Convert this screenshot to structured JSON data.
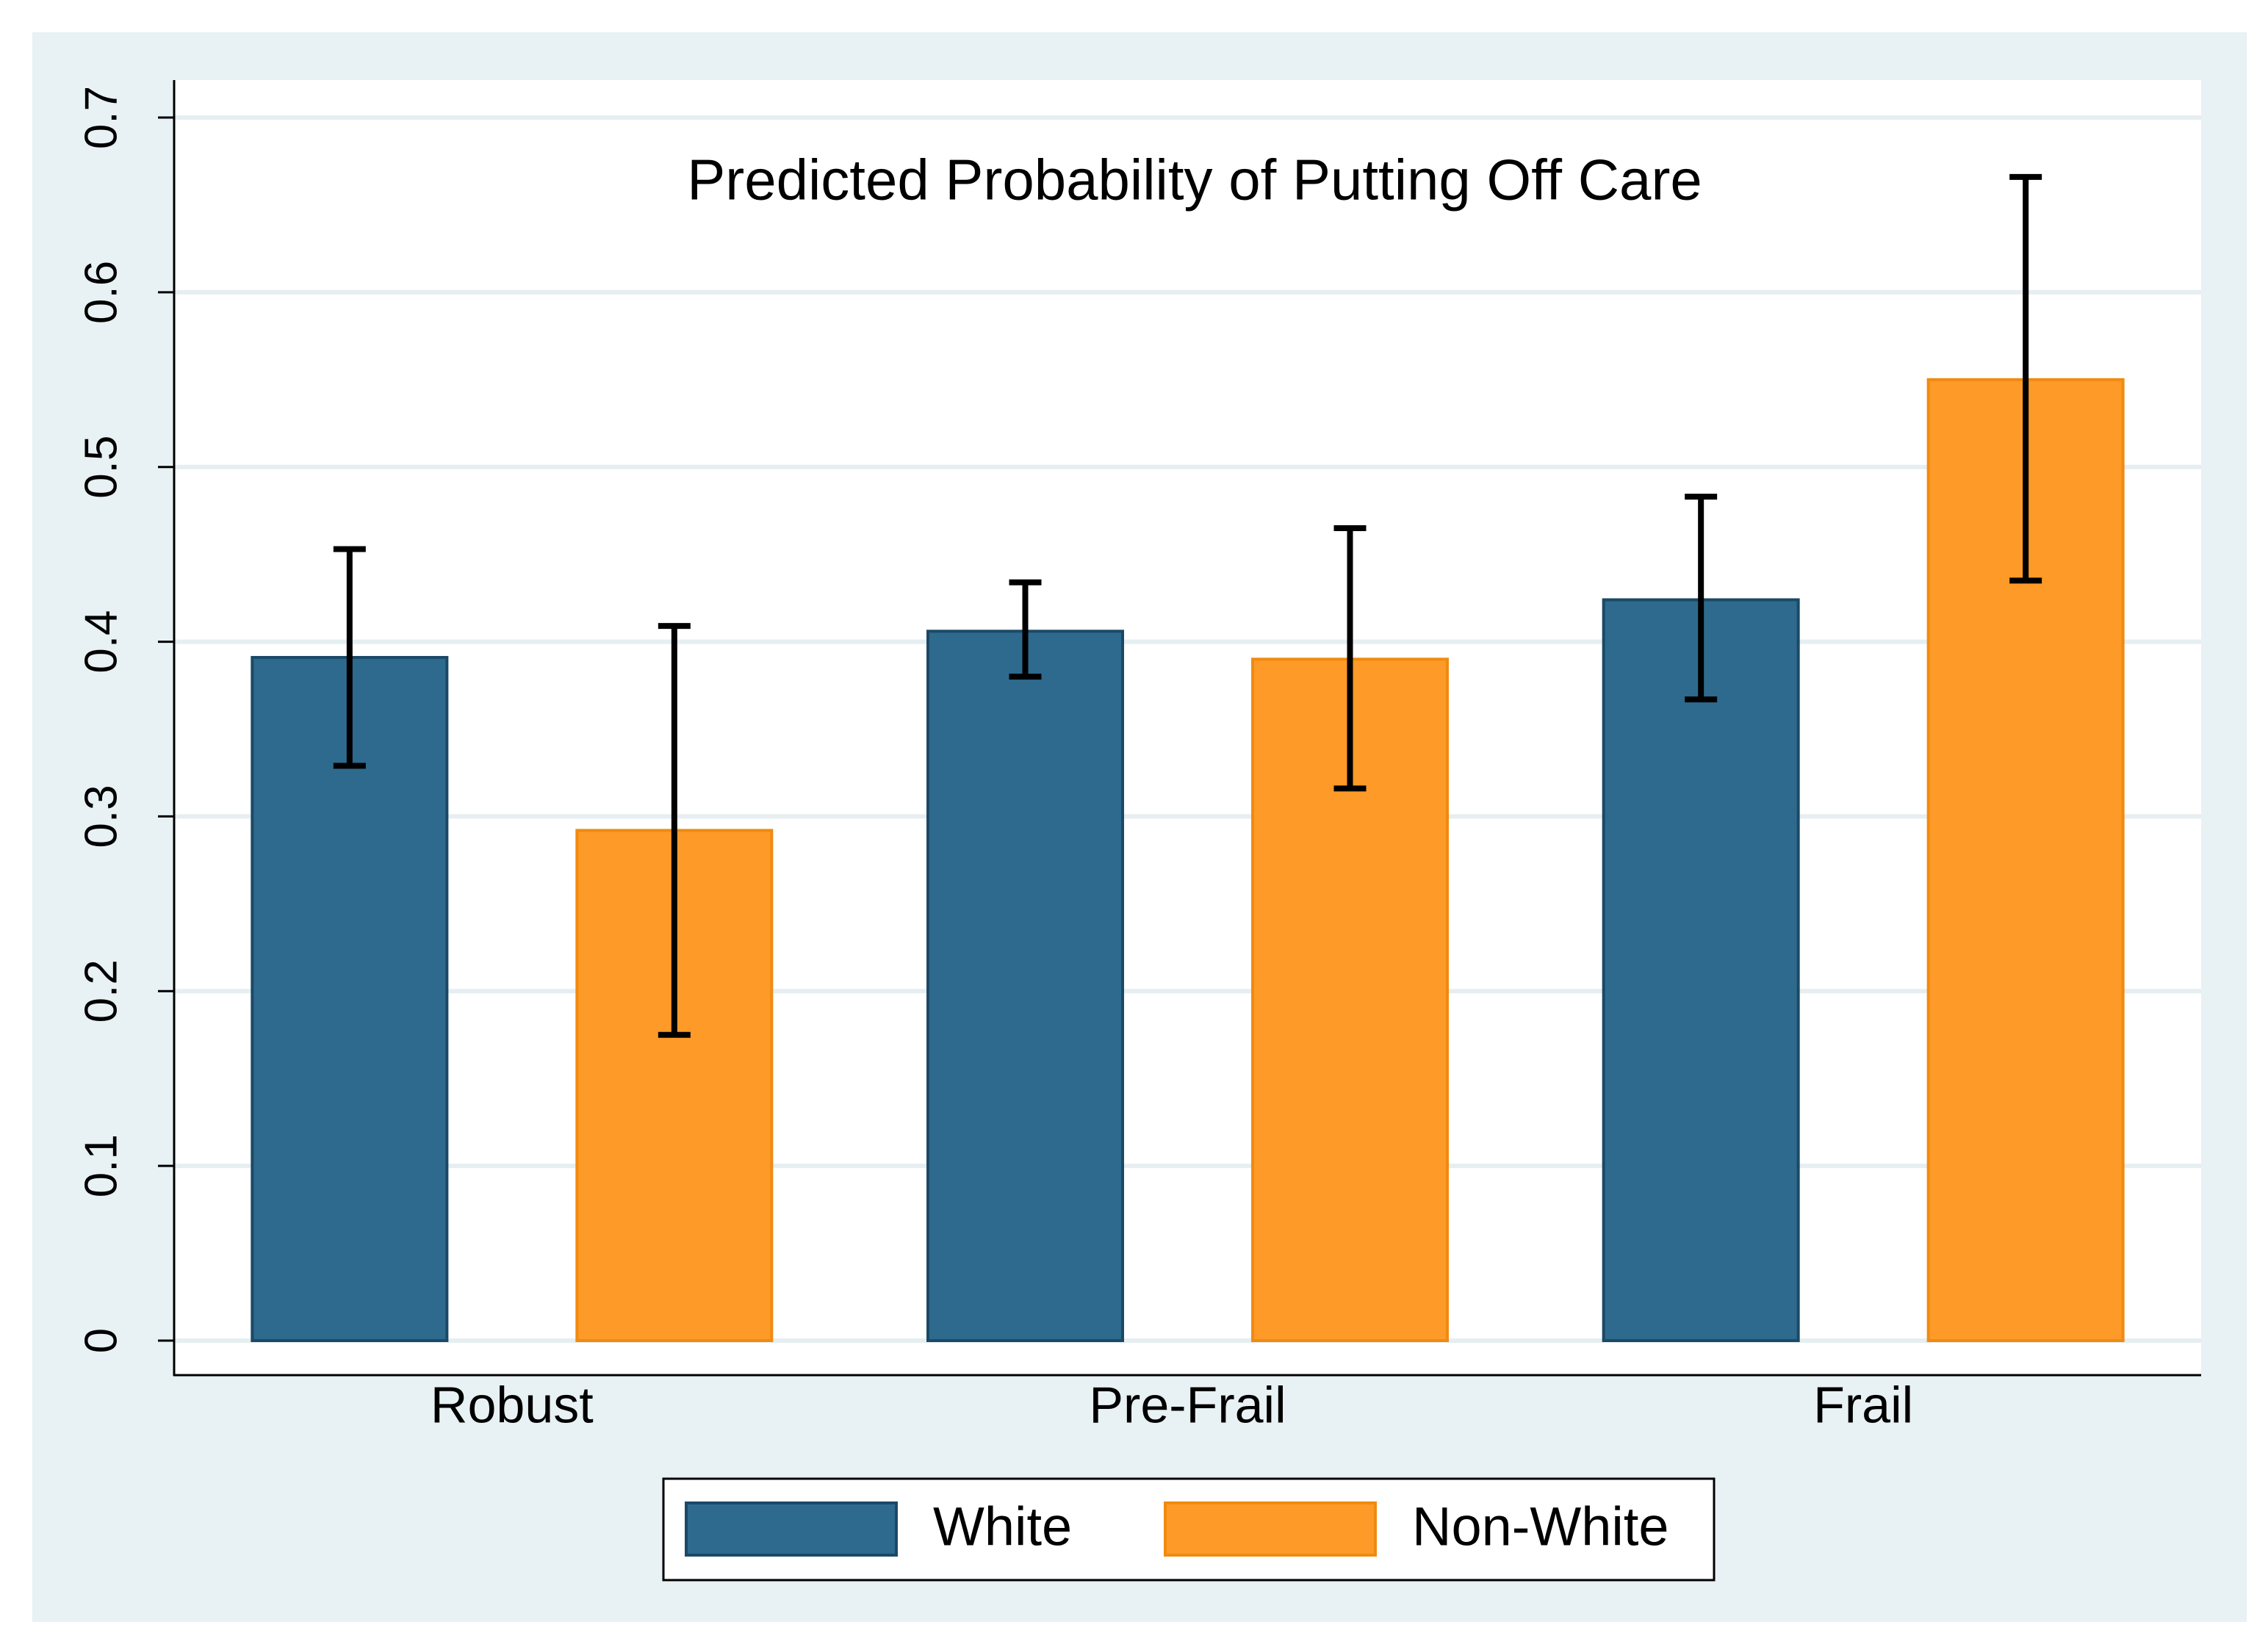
{
  "chart_data": {
    "type": "bar",
    "title": "Predicted Probability of Putting Off Care",
    "categories": [
      "Robust",
      "Pre-Frail",
      "Frail"
    ],
    "series": [
      {
        "name": "White",
        "color": "#2d6a8e",
        "values": [
          0.391,
          0.406,
          0.424
        ],
        "ci_low": [
          0.329,
          0.38,
          0.367
        ],
        "ci_high": [
          0.453,
          0.434,
          0.483
        ]
      },
      {
        "name": "Non-White",
        "color": "#fd9a28",
        "values": [
          0.292,
          0.39,
          0.55
        ],
        "ci_low": [
          0.175,
          0.316,
          0.435
        ],
        "ci_high": [
          0.409,
          0.465,
          0.666
        ]
      }
    ],
    "ylim": [
      0,
      0.7
    ],
    "yticks": [
      0,
      0.1,
      0.2,
      0.3,
      0.4,
      0.5,
      0.6,
      0.7
    ],
    "grid": true,
    "legend": "bottom"
  }
}
